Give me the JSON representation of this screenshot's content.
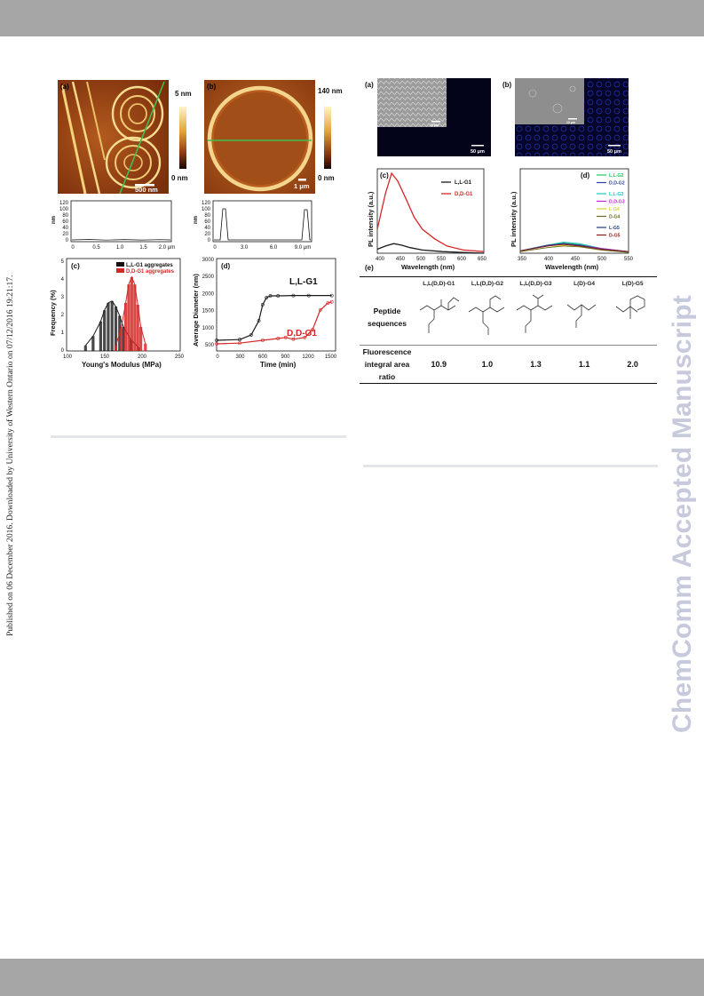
{
  "side_note": "Published on 06 December 2016. Downloaded by University of Western Ontario on 07/12/2016 19:21:17.",
  "watermark": "ChemComm Accepted Manuscript",
  "fig_left": {
    "a": {
      "letter": "(a)",
      "scale_bar": "500 nm",
      "color_max": "5 nm",
      "color_min": "0 nm"
    },
    "b": {
      "letter": "(b)",
      "scale_bar": "1 μm",
      "color_max": "140 nm",
      "color_min": "0 nm"
    },
    "profile_a": {
      "ylabel": "nm",
      "yticks": [
        "120",
        "100",
        "80",
        "60",
        "40",
        "20",
        "0"
      ],
      "xticks": [
        "0",
        "0.5",
        "1.0",
        "1.5",
        "2.0 μm"
      ]
    },
    "profile_b": {
      "ylabel": "nm",
      "yticks": [
        "120",
        "100",
        "80",
        "60",
        "40",
        "20",
        "0"
      ],
      "xticks": [
        "0",
        "3.0",
        "6.0",
        "9.0 μm"
      ]
    },
    "c": {
      "letter": "(c)",
      "ylabel": "Frequency (%)",
      "xlabel": "Young's Modulus (MPa)",
      "xticks": [
        "100",
        "150",
        "200",
        "250"
      ],
      "yticks": [
        "5",
        "4",
        "3",
        "2",
        "1",
        "0"
      ],
      "legend": [
        "L,L-G1 aggregates",
        "D,D-G1 aggregates"
      ]
    },
    "d": {
      "letter": "(d)",
      "ylabel": "Average Diameter (nm)",
      "xlabel": "Time (min)",
      "xticks": [
        "0",
        "300",
        "600",
        "900",
        "1200",
        "1500"
      ],
      "yticks": [
        "3000",
        "2500",
        "2000",
        "1500",
        "1000",
        "500"
      ],
      "series_labels": [
        "L,L-G1",
        "D,D-G1"
      ]
    }
  },
  "fig_right": {
    "a": {
      "letter": "(a)",
      "inset_bar": "10 μm",
      "scale_bar": "50 μm"
    },
    "b": {
      "letter": "(b)",
      "inset_bar": "10 μm",
      "scale_bar": "50 μm"
    },
    "c": {
      "letter": "(c)",
      "ylabel": "PL intensity (a.u.)",
      "xlabel": "Wavelength (nm)",
      "xticks": [
        "400",
        "450",
        "500",
        "550",
        "600",
        "650"
      ],
      "legend": [
        "L,L-G1",
        "D,D-G1"
      ]
    },
    "d": {
      "letter": "(d)",
      "ylabel": "PL intensity (a.u.)",
      "xlabel": "Wavelength (nm)",
      "xticks": [
        "350",
        "400",
        "450",
        "500",
        "550"
      ],
      "legend": [
        "L,L-G2",
        "D,D-G2",
        "L,L-G3",
        "D,D-G3",
        "L-G4",
        "D-G4",
        "L-G5",
        "D-G5"
      ]
    },
    "e": {
      "letter": "(e)",
      "columns": [
        "L,L(D,D)-G1",
        "L,L(D,D)-G2",
        "L,L(D,D)-G3",
        "L(D)-G4",
        "L(D)-G5"
      ],
      "row1_label": "Peptide sequences",
      "row2_label": "Fluorescence integral area ratio",
      "ratios": [
        "10.9",
        "1.0",
        "1.3",
        "1.1",
        "2.0"
      ]
    }
  },
  "chart_data": [
    {
      "type": "bar",
      "title": "(c)",
      "xlabel": "Young's Modulus (MPa)",
      "ylabel": "Frequency (%)",
      "xlim": [
        100,
        250
      ],
      "ylim": [
        0,
        5
      ],
      "series": [
        {
          "name": "L,L-G1 aggregates",
          "x": [
            125,
            135,
            145,
            150,
            155,
            160,
            165,
            170,
            175,
            185,
            195
          ],
          "values": [
            0.3,
            0.8,
            1.6,
            2.2,
            2.6,
            2.7,
            2.4,
            1.9,
            1.3,
            0.6,
            0.2
          ]
        },
        {
          "name": "D,D-G1 aggregates",
          "x": [
            165,
            172,
            178,
            182,
            186,
            190,
            194,
            198,
            204
          ],
          "values": [
            0.3,
            1.2,
            2.6,
            3.6,
            4.0,
            3.6,
            2.5,
            1.3,
            0.4
          ]
        }
      ]
    },
    {
      "type": "scatter",
      "title": "(d)",
      "xlabel": "Time (min)",
      "ylabel": "Average Diameter (nm)",
      "xlim": [
        0,
        1550
      ],
      "ylim": [
        400,
        3000
      ],
      "series": [
        {
          "name": "L,L-G1",
          "x": [
            0,
            300,
            450,
            550,
            600,
            650,
            700,
            800,
            1000,
            1200,
            1500
          ],
          "values": [
            700,
            720,
            850,
            1250,
            1700,
            1900,
            1950,
            1950,
            1960,
            1960,
            1960
          ]
        },
        {
          "name": "D,D-G1",
          "x": [
            0,
            300,
            600,
            800,
            900,
            1000,
            1150,
            1250,
            1350,
            1450,
            1500
          ],
          "values": [
            600,
            620,
            700,
            750,
            780,
            730,
            780,
            1000,
            1550,
            1750,
            1780
          ]
        }
      ]
    },
    {
      "type": "line",
      "title": "(c)",
      "xlabel": "Wavelength (nm)",
      "ylabel": "PL intensity (a.u.)",
      "xlim": [
        390,
        650
      ],
      "series": [
        {
          "name": "L,L-G1",
          "x": [
            390,
            410,
            430,
            450,
            470,
            500,
            550,
            600,
            650
          ],
          "values": [
            0.05,
            0.09,
            0.12,
            0.1,
            0.07,
            0.04,
            0.02,
            0.01,
            0.0
          ]
        },
        {
          "name": "D,D-G1",
          "x": [
            390,
            410,
            425,
            440,
            460,
            480,
            500,
            530,
            560,
            600,
            650
          ],
          "values": [
            0.3,
            0.75,
            1.0,
            0.9,
            0.68,
            0.45,
            0.3,
            0.18,
            0.09,
            0.04,
            0.02
          ]
        }
      ]
    },
    {
      "type": "line",
      "title": "(d)",
      "xlabel": "Wavelength (nm)",
      "ylabel": "PL intensity (a.u.)",
      "xlim": [
        350,
        550
      ],
      "series": [
        {
          "name": "L,L-G2",
          "x": [
            350,
            400,
            430,
            460,
            500,
            550
          ],
          "values": [
            0.03,
            0.1,
            0.13,
            0.11,
            0.06,
            0.02
          ]
        },
        {
          "name": "D,D-G2",
          "x": [
            350,
            400,
            430,
            460,
            500,
            550
          ],
          "values": [
            0.03,
            0.09,
            0.12,
            0.1,
            0.05,
            0.02
          ]
        },
        {
          "name": "L,L-G3",
          "x": [
            350,
            400,
            430,
            460,
            500,
            550
          ],
          "values": [
            0.03,
            0.1,
            0.14,
            0.12,
            0.06,
            0.02
          ]
        },
        {
          "name": "D,D-G3",
          "x": [
            350,
            400,
            430,
            460,
            500,
            550
          ],
          "values": [
            0.03,
            0.09,
            0.12,
            0.1,
            0.06,
            0.02
          ]
        },
        {
          "name": "L-G4",
          "x": [
            350,
            400,
            430,
            460,
            500,
            550
          ],
          "values": [
            0.02,
            0.07,
            0.1,
            0.08,
            0.04,
            0.01
          ]
        },
        {
          "name": "D-G4",
          "x": [
            350,
            400,
            430,
            460,
            500,
            550
          ],
          "values": [
            0.02,
            0.07,
            0.09,
            0.08,
            0.04,
            0.01
          ]
        },
        {
          "name": "L-G5",
          "x": [
            350,
            400,
            430,
            460,
            500,
            550
          ],
          "values": [
            0.03,
            0.1,
            0.12,
            0.1,
            0.05,
            0.02
          ]
        },
        {
          "name": "D-G5",
          "x": [
            350,
            400,
            430,
            460,
            500,
            550
          ],
          "values": [
            0.03,
            0.09,
            0.11,
            0.09,
            0.05,
            0.02
          ]
        }
      ]
    }
  ],
  "colors": {
    "band": "#a6a6a6",
    "watermark": "#c7c9dc",
    "rule": "#e5e6ea",
    "series_black": "#1a1a1a",
    "series_red": "#d62728",
    "afm_guide": "#3fbf4f",
    "d_legend": [
      "#22c55e",
      "#2e3fa3",
      "#22c5c5",
      "#c026d3",
      "#d4d43a",
      "#6b6b22",
      "#1e3a8a",
      "#8b1a1a"
    ]
  }
}
